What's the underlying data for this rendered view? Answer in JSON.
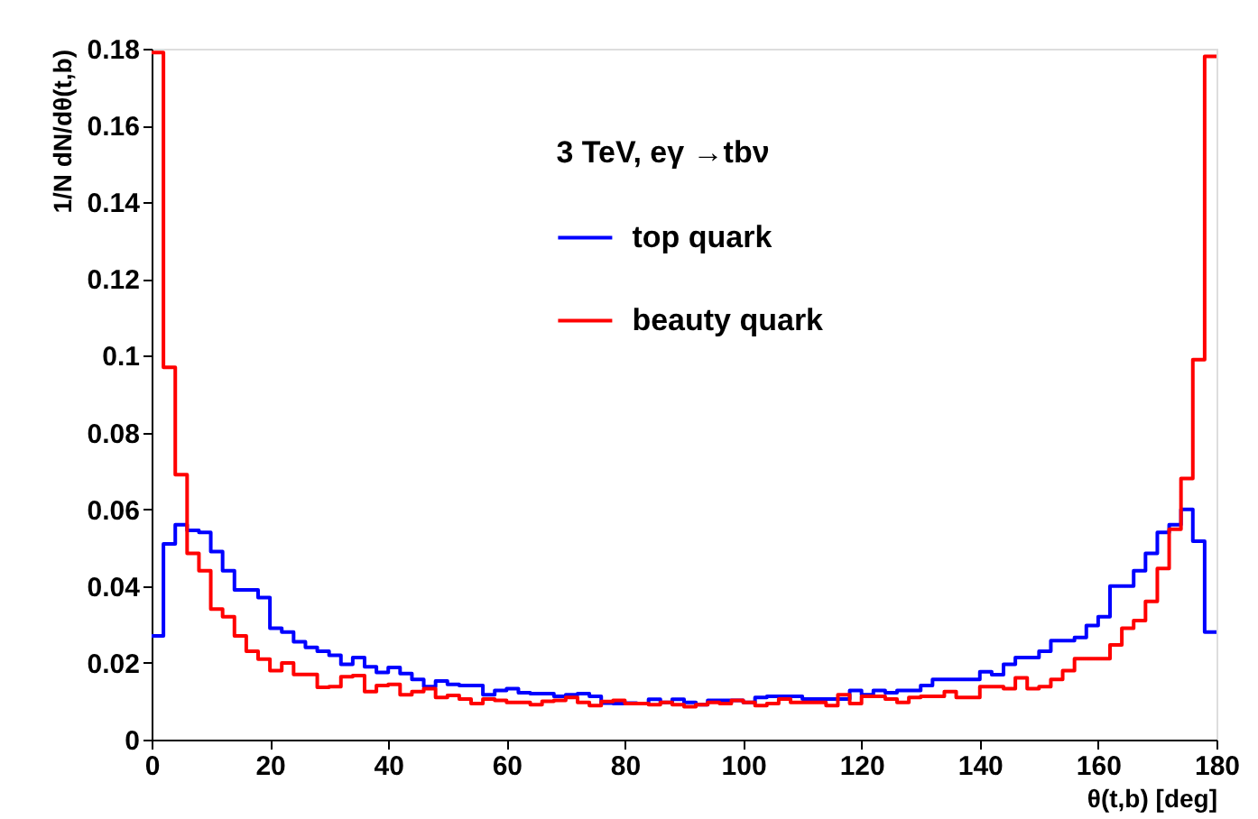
{
  "chart_data": {
    "type": "histogram",
    "xlabel": "θ(t,b) [deg]",
    "ylabel": "1/N dN/dθ(t,b)",
    "legend_title": "3 TeV, eγ →tbν",
    "bins": [
      0,
      2,
      4,
      6,
      8,
      10,
      12,
      14,
      16,
      18,
      20,
      22,
      24,
      26,
      28,
      30,
      32,
      34,
      36,
      38,
      40,
      42,
      44,
      46,
      48,
      50,
      52,
      54,
      56,
      58,
      60,
      62,
      64,
      66,
      68,
      70,
      72,
      74,
      76,
      78,
      80,
      82,
      84,
      86,
      88,
      90,
      92,
      94,
      96,
      98,
      100,
      102,
      104,
      106,
      108,
      110,
      112,
      114,
      116,
      118,
      120,
      122,
      124,
      126,
      128,
      130,
      132,
      134,
      136,
      138,
      140,
      142,
      144,
      146,
      148,
      150,
      152,
      154,
      156,
      158,
      160,
      162,
      164,
      166,
      168,
      170,
      172,
      174,
      176,
      178,
      180
    ],
    "series": [
      {
        "name": "top quark",
        "color": "#0000ff",
        "values": [
          0.027,
          0.051,
          0.056,
          0.0545,
          0.054,
          0.049,
          0.044,
          0.039,
          0.039,
          0.037,
          0.029,
          0.028,
          0.0255,
          0.024,
          0.023,
          0.022,
          0.0196,
          0.0214,
          0.019,
          0.0175,
          0.0188,
          0.0172,
          0.0157,
          0.0138,
          0.0153,
          0.0144,
          0.0141,
          0.0141,
          0.0117,
          0.0128,
          0.0133,
          0.0122,
          0.012,
          0.012,
          0.0113,
          0.0117,
          0.012,
          0.0113,
          0.0095,
          0.0094,
          0.0095,
          0.0094,
          0.0105,
          0.0097,
          0.0105,
          0.0097,
          0.0091,
          0.0102,
          0.0102,
          0.0102,
          0.0097,
          0.011,
          0.0113,
          0.0113,
          0.0113,
          0.0106,
          0.0106,
          0.0106,
          0.0106,
          0.0128,
          0.0117,
          0.0128,
          0.0122,
          0.0128,
          0.0128,
          0.0141,
          0.0157,
          0.0157,
          0.0157,
          0.0157,
          0.0177,
          0.0169,
          0.0196,
          0.0214,
          0.0214,
          0.023,
          0.0258,
          0.0258,
          0.0266,
          0.0297,
          0.032,
          0.04,
          0.04,
          0.044,
          0.0485,
          0.054,
          0.056,
          0.06,
          0.0517,
          0.028
        ]
      },
      {
        "name": "beauty quark",
        "color": "#ff0000",
        "values": [
          0.179,
          0.097,
          0.069,
          0.0485,
          0.044,
          0.034,
          0.032,
          0.027,
          0.023,
          0.021,
          0.018,
          0.02,
          0.017,
          0.017,
          0.0136,
          0.0138,
          0.0164,
          0.0167,
          0.0125,
          0.0141,
          0.0144,
          0.0117,
          0.0125,
          0.0133,
          0.011,
          0.0115,
          0.0106,
          0.0094,
          0.0106,
          0.0102,
          0.0097,
          0.0097,
          0.0091,
          0.01,
          0.0102,
          0.011,
          0.0097,
          0.0089,
          0.0099,
          0.0102,
          0.0094,
          0.0094,
          0.0091,
          0.0097,
          0.0091,
          0.0086,
          0.0091,
          0.0097,
          0.0094,
          0.0102,
          0.0097,
          0.0089,
          0.0094,
          0.0106,
          0.0097,
          0.0097,
          0.0097,
          0.0089,
          0.0117,
          0.0094,
          0.0113,
          0.0113,
          0.0106,
          0.0097,
          0.011,
          0.0113,
          0.0113,
          0.0125,
          0.011,
          0.011,
          0.0138,
          0.0138,
          0.0133,
          0.0161,
          0.0133,
          0.0138,
          0.0157,
          0.018,
          0.0211,
          0.0211,
          0.0211,
          0.0247,
          0.029,
          0.031,
          0.036,
          0.0446,
          0.0548,
          0.068,
          0.099,
          0.178
        ]
      }
    ],
    "xlim": [
      0,
      180
    ],
    "xticks": [
      0,
      20,
      40,
      60,
      80,
      100,
      120,
      140,
      160,
      180
    ],
    "ylim": [
      0,
      0.18
    ],
    "yticks": [
      0,
      0.02,
      0.04,
      0.06,
      0.08,
      0.1,
      0.12,
      0.14,
      0.16,
      0.18
    ],
    "grid": false,
    "legend": "top right",
    "line_style": "solid"
  }
}
